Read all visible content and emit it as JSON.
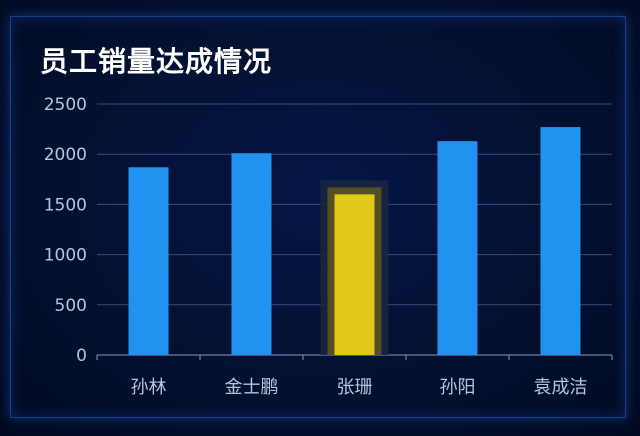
{
  "chart_data": {
    "type": "bar",
    "title": "员工销量达成情况",
    "categories": [
      "孙林",
      "金士鹏",
      "张珊",
      "孙阳",
      "袁成洁"
    ],
    "values": [
      1870,
      2010,
      1600,
      2130,
      2270
    ],
    "ylim": [
      0,
      2500
    ],
    "yticks": [
      0,
      500,
      1000,
      1500,
      2000,
      2500
    ],
    "grid": true,
    "highlight_category": "张珊",
    "colors": {
      "bar": "#2292f0",
      "highlight": "#e2c81a",
      "grid": "#3a4e78",
      "text": "#b8c4dc"
    }
  }
}
